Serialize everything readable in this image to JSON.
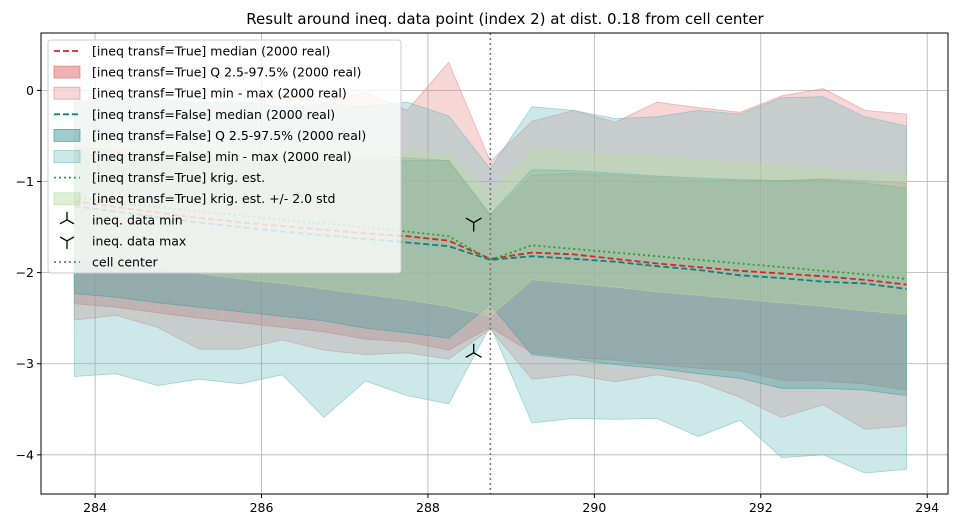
{
  "chart_data": {
    "type": "line",
    "title": "Result around ineq. data point (index 2) at dist. 0.18 from cell center",
    "xlabel": "",
    "ylabel": "",
    "xlim": [
      283.35,
      294.25
    ],
    "ylim": [
      -4.43,
      0.63
    ],
    "x_ticks": [
      284,
      286,
      288,
      290,
      292,
      294
    ],
    "x_tick_labels": [
      "284",
      "286",
      "288",
      "290",
      "292",
      "294"
    ],
    "y_ticks": [
      0,
      -1,
      -2,
      -3,
      -4
    ],
    "y_tick_labels": [
      "0",
      "−1",
      "−2",
      "−3",
      "−4"
    ],
    "grid": true,
    "legend_position": "upper-left",
    "x": [
      283.75,
      284.25,
      284.75,
      285.25,
      285.75,
      286.25,
      286.75,
      287.25,
      287.75,
      288.25,
      288.75,
      289.25,
      289.75,
      290.25,
      290.75,
      291.25,
      291.75,
      292.25,
      292.75,
      293.25,
      293.75
    ],
    "series": [
      {
        "name": "[ineq transf=True] median (2000 real)",
        "style": "dashed",
        "color": "#d62728",
        "values": [
          -1.22,
          -1.28,
          -1.34,
          -1.4,
          -1.45,
          -1.49,
          -1.53,
          -1.57,
          -1.6,
          -1.65,
          -1.85,
          -1.78,
          -1.8,
          -1.85,
          -1.9,
          -1.94,
          -1.98,
          -2.01,
          -2.04,
          -2.08,
          -2.13
        ]
      },
      {
        "name": "[ineq transf=False] median (2000 real)",
        "style": "dashed",
        "color": "#1a7a80",
        "values": [
          -1.27,
          -1.33,
          -1.39,
          -1.45,
          -1.5,
          -1.55,
          -1.59,
          -1.63,
          -1.67,
          -1.71,
          -1.86,
          -1.82,
          -1.85,
          -1.88,
          -1.93,
          -1.97,
          -2.03,
          -2.06,
          -2.1,
          -2.12,
          -2.18
        ]
      },
      {
        "name": "[ineq transf=True] krig. est.",
        "style": "dotted",
        "color": "#2ca02c",
        "values": [
          -1.17,
          -1.23,
          -1.28,
          -1.33,
          -1.37,
          -1.42,
          -1.46,
          -1.5,
          -1.55,
          -1.6,
          -1.86,
          -1.7,
          -1.74,
          -1.78,
          -1.82,
          -1.86,
          -1.9,
          -1.94,
          -1.98,
          -2.02,
          -2.07
        ]
      }
    ],
    "bands": [
      {
        "name": "[ineq transf=True] Q 2.5-97.5% (2000 real)",
        "color": "#e06666",
        "opacity": 0.4,
        "upper": [
          -0.62,
          -0.66,
          -0.69,
          -0.72,
          -0.76,
          -0.78,
          -0.77,
          -0.74,
          -0.74,
          -0.77,
          -1.38,
          -0.93,
          -0.91,
          -0.93,
          -0.95,
          -0.98,
          -0.99,
          -0.99,
          -0.97,
          -0.99,
          -1.02
        ],
        "lower": [
          -2.34,
          -2.38,
          -2.44,
          -2.5,
          -2.55,
          -2.6,
          -2.65,
          -2.73,
          -2.76,
          -2.85,
          -2.6,
          -2.88,
          -2.93,
          -2.96,
          -3.01,
          -3.05,
          -3.08,
          -3.18,
          -3.19,
          -3.22,
          -3.29
        ]
      },
      {
        "name": "[ineq transf=True] min - max (2000 real)",
        "color": "#e88a8a",
        "opacity": 0.35,
        "upper": [
          -0.1,
          -0.12,
          -0.1,
          -0.13,
          -0.15,
          -0.05,
          -0.13,
          -0.02,
          -0.22,
          0.31,
          -0.78,
          -0.34,
          -0.22,
          -0.35,
          -0.13,
          -0.19,
          -0.24,
          -0.06,
          0.02,
          -0.22,
          -0.26
        ],
        "lower": [
          -2.52,
          -2.47,
          -2.6,
          -2.84,
          -2.84,
          -2.74,
          -2.85,
          -2.9,
          -2.88,
          -2.95,
          -2.62,
          -3.17,
          -3.12,
          -3.2,
          -3.12,
          -3.2,
          -3.37,
          -3.59,
          -3.45,
          -3.72,
          -3.68
        ]
      },
      {
        "name": "[ineq transf=False] Q 2.5-97.5% (2000 real)",
        "color": "#2a8f8f",
        "opacity": 0.35,
        "upper": [
          -0.7,
          -0.71,
          -0.75,
          -0.76,
          -0.79,
          -0.81,
          -0.8,
          -0.78,
          -0.77,
          -0.77,
          -1.36,
          -0.87,
          -0.88,
          -0.91,
          -0.94,
          -0.96,
          -0.98,
          -0.99,
          -0.98,
          -1.02,
          -1.07
        ],
        "lower": [
          -2.23,
          -2.27,
          -2.33,
          -2.38,
          -2.43,
          -2.48,
          -2.53,
          -2.61,
          -2.66,
          -2.72,
          -2.35,
          -2.9,
          -2.95,
          -3.01,
          -3.05,
          -3.11,
          -3.16,
          -3.27,
          -3.27,
          -3.29,
          -3.35
        ]
      },
      {
        "name": "[ineq transf=False] min - max (2000 real)",
        "color": "#6cbcbc",
        "opacity": 0.35,
        "upper": [
          -0.15,
          -0.08,
          -0.1,
          -0.14,
          -0.12,
          -0.19,
          -0.15,
          -0.18,
          -0.13,
          -0.28,
          -0.86,
          -0.18,
          -0.22,
          -0.31,
          -0.29,
          -0.22,
          -0.26,
          -0.08,
          -0.07,
          -0.29,
          -0.39
        ],
        "lower": [
          -3.14,
          -3.11,
          -3.24,
          -3.17,
          -3.22,
          -3.12,
          -3.59,
          -3.19,
          -3.35,
          -3.44,
          -2.58,
          -3.65,
          -3.6,
          -3.61,
          -3.6,
          -3.8,
          -3.62,
          -4.03,
          -4.0,
          -4.2,
          -4.16
        ]
      },
      {
        "name": "[ineq transf=True] krig. est. +/- 2.0 std",
        "color": "#b8dca0",
        "opacity": 0.4,
        "upper": [
          -0.52,
          -0.54,
          -0.56,
          -0.58,
          -0.6,
          -0.62,
          -0.64,
          -0.66,
          -0.68,
          -0.7,
          -1.12,
          -0.65,
          -0.67,
          -0.7,
          -0.73,
          -0.76,
          -0.79,
          -0.83,
          -0.86,
          -0.89,
          -0.93
        ],
        "lower": [
          -1.83,
          -1.89,
          -1.95,
          -2.01,
          -2.07,
          -2.12,
          -2.18,
          -2.24,
          -2.3,
          -2.37,
          -2.48,
          -2.08,
          -2.12,
          -2.16,
          -2.21,
          -2.25,
          -2.29,
          -2.33,
          -2.37,
          -2.42,
          -2.46
        ]
      }
    ],
    "markers": [
      {
        "name": "ineq. data min",
        "symbol": "tri-up",
        "x": 288.55,
        "y": -2.88
      },
      {
        "name": "ineq. data max",
        "symbol": "tri-down",
        "x": 288.55,
        "y": -1.45
      }
    ],
    "vline": {
      "name": "cell center",
      "x": 288.75,
      "style": "dotted",
      "color": "#777777"
    },
    "legend": [
      {
        "label": "[ineq transf=True] median (2000 real)",
        "kind": "dashed",
        "color": "#d62728"
      },
      {
        "label": "[ineq transf=True] Q 2.5-97.5% (2000 real)",
        "kind": "patch",
        "color": "#e06666",
        "opacity": 0.5
      },
      {
        "label": "[ineq transf=True] min - max (2000 real)",
        "kind": "patch",
        "color": "#e88a8a",
        "opacity": 0.35
      },
      {
        "label": "[ineq transf=False] median (2000 real)",
        "kind": "dashed",
        "color": "#1a7a80"
      },
      {
        "label": "[ineq transf=False] Q 2.5-97.5% (2000 real)",
        "kind": "patch",
        "color": "#2a8f8f",
        "opacity": 0.45
      },
      {
        "label": "[ineq transf=False] min - max (2000 real)",
        "kind": "patch",
        "color": "#6cbcbc",
        "opacity": 0.35
      },
      {
        "label": "[ineq transf=True] krig. est.",
        "kind": "dotted",
        "color": "#2ca02c"
      },
      {
        "label": "[ineq transf=True] krig. est. +/- 2.0 std",
        "kind": "patch",
        "color": "#b8dca0",
        "opacity": 0.45
      },
      {
        "label": "ineq. data min",
        "kind": "tri-up",
        "color": "#000000"
      },
      {
        "label": "ineq. data max",
        "kind": "tri-down",
        "color": "#000000"
      },
      {
        "label": "cell center",
        "kind": "dotted",
        "color": "#777777"
      }
    ]
  }
}
